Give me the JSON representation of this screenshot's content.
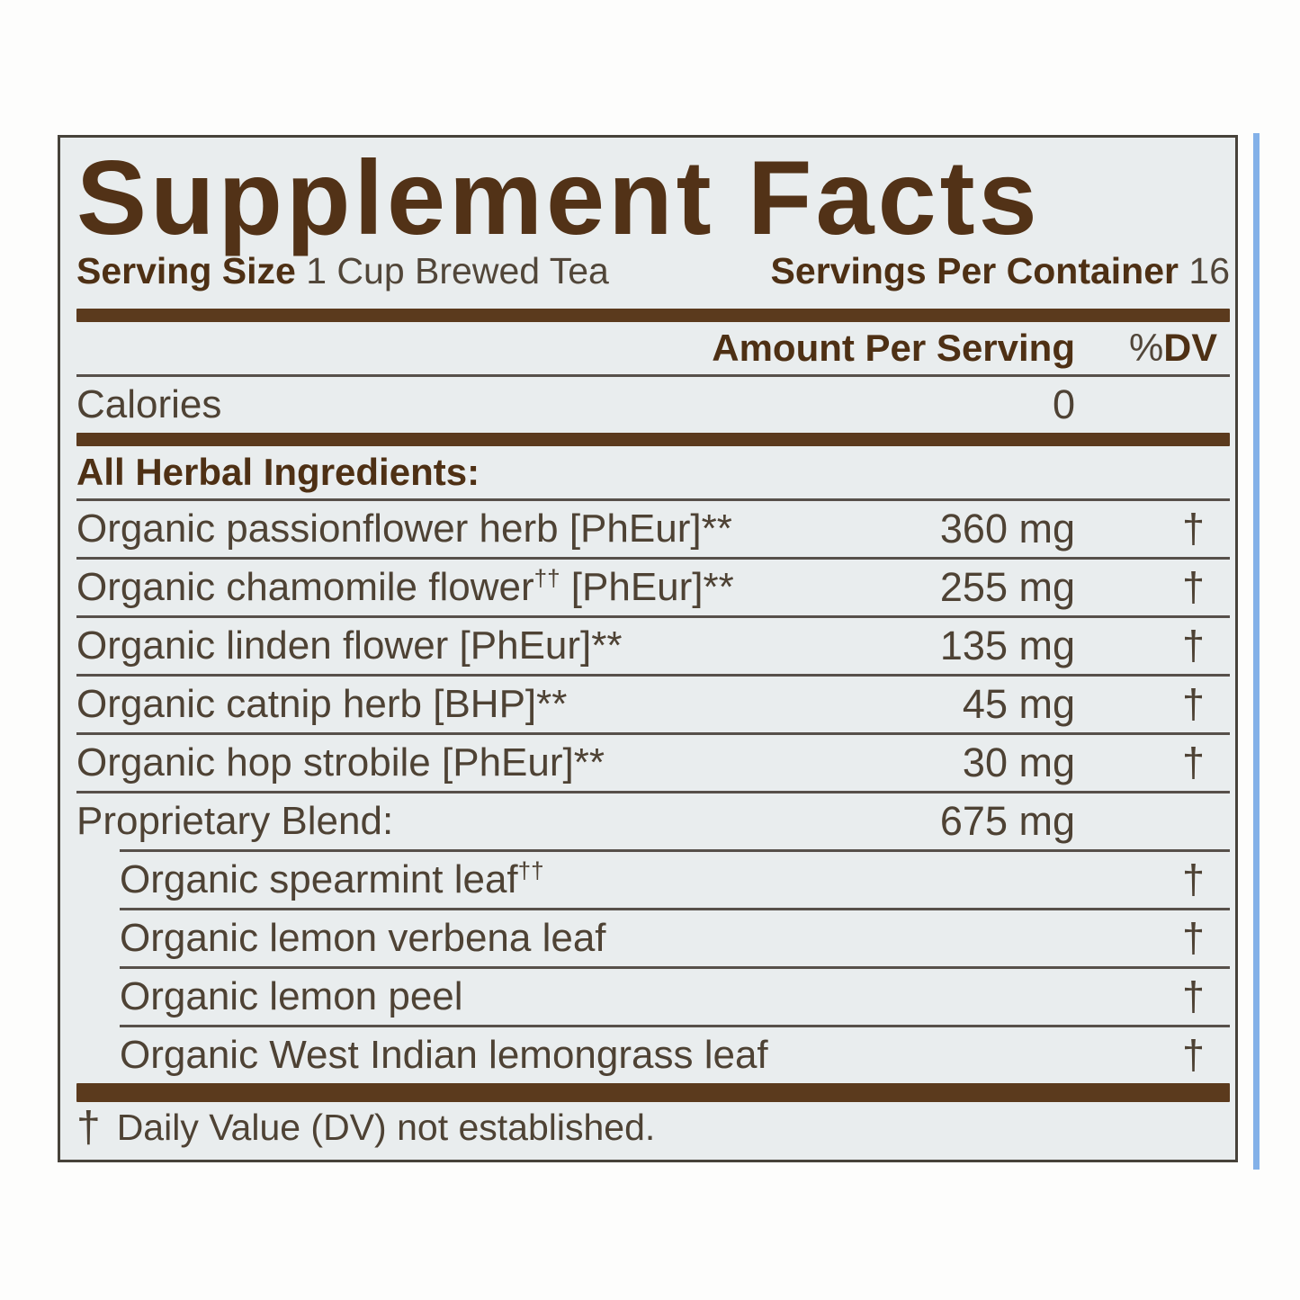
{
  "label": {
    "title": "Supplement Facts",
    "serving_size_label": "Serving Size",
    "serving_size_value": "1 Cup Brewed Tea",
    "servings_per_container_label": "Servings Per Container",
    "servings_per_container_value": "16",
    "amount_per_serving_label": "Amount Per Serving",
    "dv_percent_sign": "%",
    "dv_label": "DV",
    "calories_label": "Calories",
    "calories_value": "0",
    "section_heading": "All Herbal Ingredients:",
    "footnote_dagger": "†",
    "footnote_text": "Daily Value (DV) not established."
  },
  "rows": [
    {
      "pre": "Organic passionflower herb [PhEur]**",
      "sup": "",
      "post": "",
      "amount": "360 mg",
      "dv": "†",
      "indent": false,
      "divider_above_indent": false
    },
    {
      "pre": "Organic chamomile flower",
      "sup": "††",
      "post": " [PhEur]**",
      "amount": "255 mg",
      "dv": "†",
      "indent": false,
      "divider_above_indent": false
    },
    {
      "pre": "Organic linden flower [PhEur]**",
      "sup": "",
      "post": "",
      "amount": "135 mg",
      "dv": "†",
      "indent": false,
      "divider_above_indent": false
    },
    {
      "pre": "Organic catnip herb [BHP]**",
      "sup": "",
      "post": "",
      "amount": "45 mg",
      "dv": "†",
      "indent": false,
      "divider_above_indent": false
    },
    {
      "pre": "Organic hop strobile [PhEur]**",
      "sup": "",
      "post": "",
      "amount": "30 mg",
      "dv": "†",
      "indent": false,
      "divider_above_indent": false
    },
    {
      "pre": "Proprietary Blend:",
      "sup": "",
      "post": "",
      "amount": "675 mg",
      "dv": "",
      "indent": false,
      "divider_above_indent": false
    },
    {
      "pre": "Organic spearmint leaf",
      "sup": "††",
      "post": "",
      "amount": "",
      "dv": "†",
      "indent": true,
      "divider_above_indent": true
    },
    {
      "pre": "Organic lemon verbena leaf",
      "sup": "",
      "post": "",
      "amount": "",
      "dv": "†",
      "indent": true,
      "divider_above_indent": true
    },
    {
      "pre": "Organic lemon peel",
      "sup": "",
      "post": "",
      "amount": "",
      "dv": "†",
      "indent": true,
      "divider_above_indent": true
    },
    {
      "pre": "Organic West Indian lemongrass leaf",
      "sup": "",
      "post": "",
      "amount": "",
      "dv": "†",
      "indent": true,
      "divider_above_indent": true
    }
  ],
  "colors": {
    "panel_background": "#e9edee",
    "panel_border": "#47423a",
    "bold_text_brown": "#4e3014",
    "body_text": "#4e4234",
    "thick_bar_brown": "#5b3a1d",
    "divider": "#57504a",
    "blue_strip": "#83b1e8",
    "page_background": "#fdfdfc"
  }
}
